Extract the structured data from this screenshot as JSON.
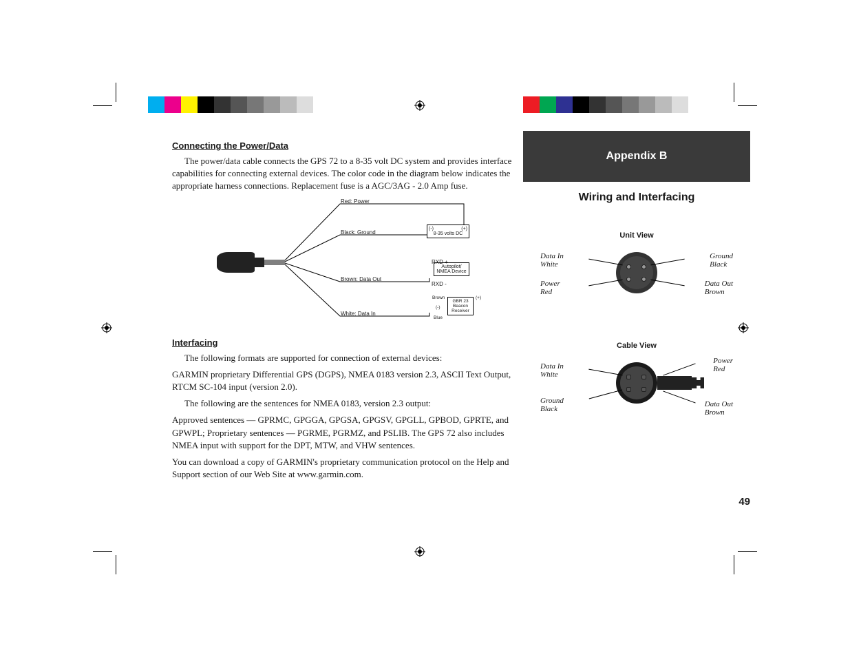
{
  "crop_marks": true,
  "color_bars": {
    "left_colors": [
      "#00aeef",
      "#ec008c",
      "#fff200",
      "#000000",
      "#333333",
      "#555555",
      "#777777",
      "#999999",
      "#bbbbbb",
      "#dddddd"
    ],
    "right_colors": [
      "#ed1c24",
      "#00a651",
      "#2e3192",
      "#000000",
      "#333333",
      "#555555",
      "#777777",
      "#999999",
      "#bbbbbb",
      "#dddddd"
    ]
  },
  "left_col": {
    "h1": "Connecting the Power/Data",
    "p1": "The power/data cable connects the GPS 72 to a 8-35 volt DC system and provides interface capabilities for connecting external devices. The color code in the diagram below indicates the appropriate harness connections. Replacement fuse is a AGC/3AG - 2.0 Amp fuse.",
    "diagram": {
      "wires": {
        "power": "Red: Power",
        "ground": "Black: Ground",
        "data_out": "Brown: Data Out",
        "data_in": "White: Data In"
      },
      "boxes": {
        "dc": {
          "minus": "(-)",
          "plus": "(+)",
          "text": "8-35 volts DC"
        },
        "nmea": {
          "rxd_plus": "RXD +",
          "rxd_minus": "RXD -",
          "text": "Autopilot/\nNMEA Device"
        },
        "gbr": {
          "brown": "Brown",
          "minus": "(-)",
          "blue": "Blue",
          "plus": "(+)",
          "text": "GBR 23\nBeacon\nReceiver"
        }
      }
    },
    "h2": "Interfacing",
    "p2": "The following formats are supported for connection of external devices:",
    "p3": "GARMIN proprietary Differential GPS (DGPS), NMEA 0183 version 2.3, ASCII Text Output, RTCM SC-104 input (version 2.0).",
    "p4": "The following are the sentences for NMEA 0183, version 2.3 output:",
    "p5": "Approved sentences — GPRMC, GPGGA, GPGSA, GPGSV, GPGLL, GPBOD, GPRTE, and GPWPL; Proprietary sentences — PGRME, PGRMZ, and PSLIB.  The GPS 72 also includes NMEA input with support for the DPT, MTW, and VHW sentences.",
    "p6": "You can download a copy of GARMIN's proprietary communication protocol on the Help and Support section of our Web Site at www.garmin.com."
  },
  "right_col": {
    "appendix": "Appendix B",
    "subtitle": "Wiring and Interfacing",
    "unit_view": {
      "title": "Unit View",
      "pins": {
        "tl": "Data In\nWhite",
        "tr": "Ground\nBlack",
        "bl": "Power\nRed",
        "br": "Data Out\nBrown"
      }
    },
    "cable_view": {
      "title": "Cable View",
      "pins": {
        "tl": "Data In\nWhite",
        "tr": "Power\nRed",
        "bl": "Ground\nBlack",
        "br": "Data Out\nBrown"
      }
    },
    "page_number": "49"
  }
}
